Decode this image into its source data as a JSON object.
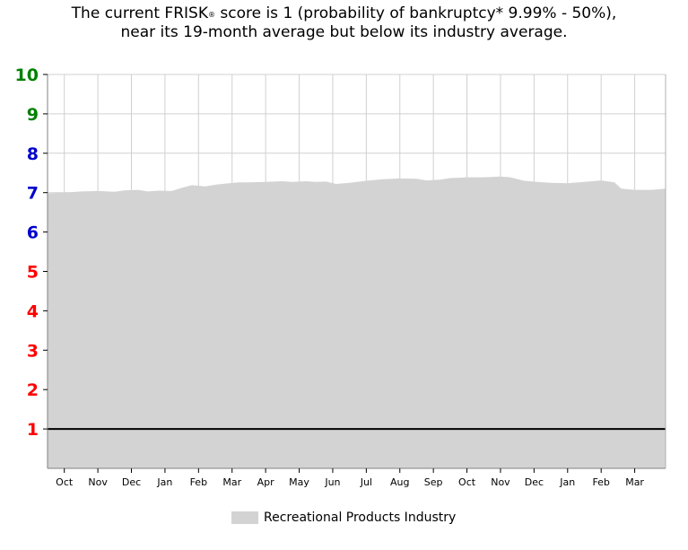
{
  "header": {
    "line1_pre": "The current FRISK",
    "line1_sup": "®",
    "line1_post": " score is 1 (probability of bankruptcy* 9.99% - 50%),",
    "line2": "near its 19-month average but below its industry average."
  },
  "colors": {
    "area": "#d3d3d3",
    "grid": "#d0d0d0",
    "score_line": "#000000",
    "tick_green": "#008000",
    "tick_blue": "#0000cc",
    "tick_red": "#ff0000"
  },
  "chart_data": {
    "type": "area",
    "ylim": [
      0,
      10
    ],
    "yticks": [
      {
        "label": "1",
        "value": 1,
        "color": "red"
      },
      {
        "label": "2",
        "value": 2,
        "color": "red"
      },
      {
        "label": "3",
        "value": 3,
        "color": "red"
      },
      {
        "label": "4",
        "value": 4,
        "color": "red"
      },
      {
        "label": "5",
        "value": 5,
        "color": "red"
      },
      {
        "label": "6",
        "value": 6,
        "color": "blue"
      },
      {
        "label": "7",
        "value": 7,
        "color": "blue"
      },
      {
        "label": "8",
        "value": 8,
        "color": "blue"
      },
      {
        "label": "9",
        "value": 9,
        "color": "green"
      },
      {
        "label": "10",
        "value": 10,
        "color": "green"
      }
    ],
    "xlim": [
      0,
      18.42
    ],
    "months": [
      {
        "label": "Oct",
        "x": 0.5
      },
      {
        "label": "Nov",
        "x": 1.5
      },
      {
        "label": "Dec",
        "x": 2.5
      },
      {
        "label": "Jan",
        "x": 3.5
      },
      {
        "label": "Feb",
        "x": 4.5
      },
      {
        "label": "Mar",
        "x": 5.5
      },
      {
        "label": "Apr",
        "x": 6.5
      },
      {
        "label": "May",
        "x": 7.5
      },
      {
        "label": "Jun",
        "x": 8.5
      },
      {
        "label": "Jul",
        "x": 9.5
      },
      {
        "label": "Aug",
        "x": 10.5
      },
      {
        "label": "Sep",
        "x": 11.5
      },
      {
        "label": "Oct",
        "x": 12.5
      },
      {
        "label": "Nov",
        "x": 13.5
      },
      {
        "label": "Dec",
        "x": 14.5
      },
      {
        "label": "Jan",
        "x": 15.5
      },
      {
        "label": "Feb",
        "x": 16.5
      },
      {
        "label": "Mar",
        "x": 17.5
      }
    ],
    "series": [
      {
        "name": "Recreational Products Industry",
        "kind": "area",
        "points": [
          [
            0.0,
            6.98
          ],
          [
            0.5,
            7.0
          ],
          [
            1.0,
            7.03
          ],
          [
            1.5,
            7.04
          ],
          [
            2.0,
            7.02
          ],
          [
            2.3,
            7.06
          ],
          [
            2.7,
            7.07
          ],
          [
            3.0,
            7.03
          ],
          [
            3.3,
            7.05
          ],
          [
            3.7,
            7.04
          ],
          [
            4.0,
            7.12
          ],
          [
            4.3,
            7.19
          ],
          [
            4.7,
            7.16
          ],
          [
            5.0,
            7.2
          ],
          [
            5.3,
            7.23
          ],
          [
            5.7,
            7.26
          ],
          [
            6.0,
            7.26
          ],
          [
            6.5,
            7.27
          ],
          [
            7.0,
            7.29
          ],
          [
            7.3,
            7.27
          ],
          [
            7.7,
            7.29
          ],
          [
            8.0,
            7.27
          ],
          [
            8.3,
            7.28
          ],
          [
            8.6,
            7.22
          ],
          [
            9.0,
            7.25
          ],
          [
            9.5,
            7.3
          ],
          [
            10.0,
            7.34
          ],
          [
            10.5,
            7.36
          ],
          [
            11.0,
            7.35
          ],
          [
            11.3,
            7.31
          ],
          [
            11.7,
            7.33
          ],
          [
            12.0,
            7.37
          ],
          [
            12.5,
            7.39
          ],
          [
            13.0,
            7.39
          ],
          [
            13.5,
            7.41
          ],
          [
            13.8,
            7.39
          ],
          [
            14.2,
            7.3
          ],
          [
            14.6,
            7.27
          ],
          [
            15.0,
            7.25
          ],
          [
            15.5,
            7.24
          ],
          [
            16.0,
            7.27
          ],
          [
            16.5,
            7.31
          ],
          [
            16.9,
            7.26
          ],
          [
            17.1,
            7.1
          ],
          [
            17.5,
            7.07
          ],
          [
            18.0,
            7.07
          ],
          [
            18.42,
            7.1
          ]
        ]
      },
      {
        "name": "FRISK score",
        "kind": "line",
        "points": [
          [
            0.0,
            1
          ],
          [
            18.42,
            1
          ]
        ]
      }
    ],
    "legend": {
      "position": "bottom-center",
      "entries": [
        "Recreational Products Industry"
      ]
    }
  }
}
